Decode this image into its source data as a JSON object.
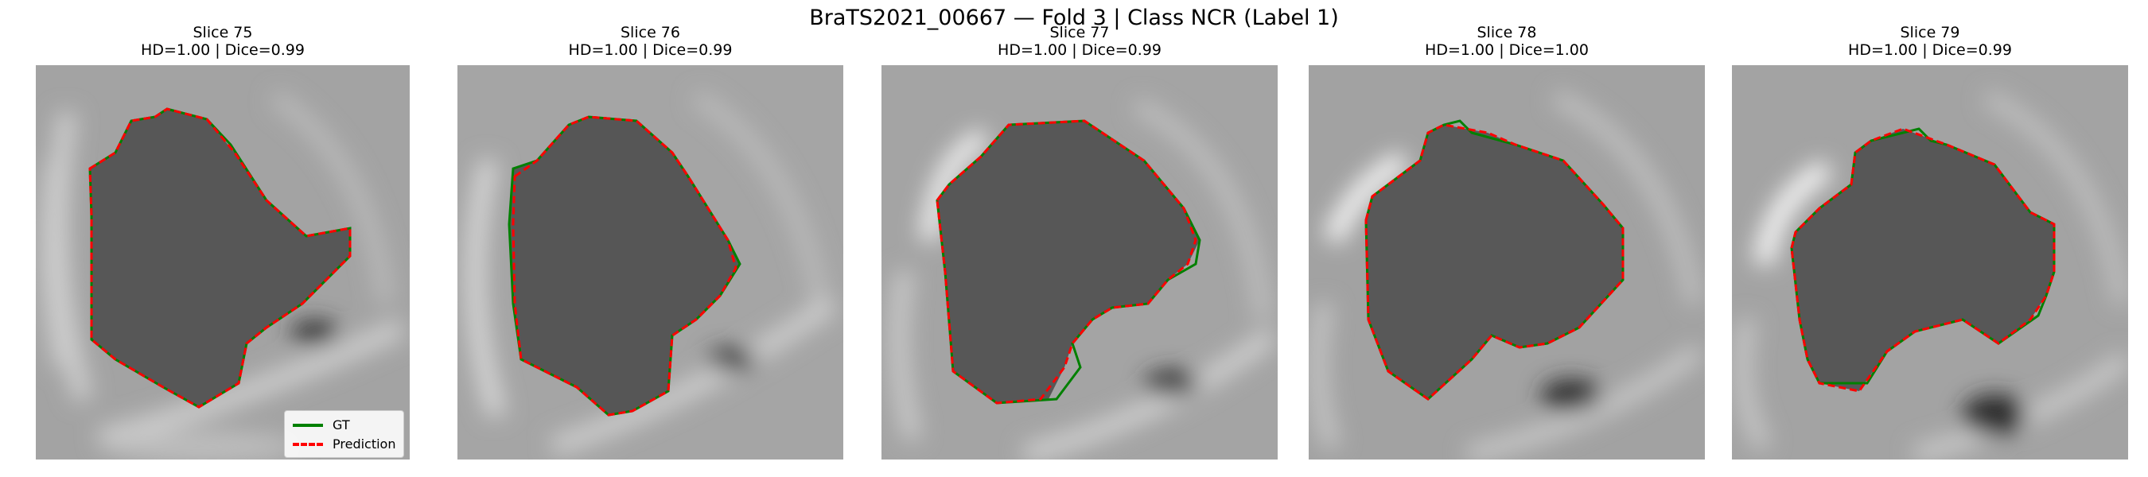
{
  "figure": {
    "title": "BraTS2021_00667 — Fold 3 | Class NCR (Label 1)"
  },
  "colors": {
    "gt": "#008000",
    "prediction": "#ff0000",
    "background_tissue": "#9a9a9a",
    "tumor_core": "#555555"
  },
  "legend": {
    "gt_label": "GT",
    "prediction_label": "Prediction"
  },
  "panels": [
    {
      "title": "Slice 75",
      "metrics": "HD=1.00 | Dice=0.99"
    },
    {
      "title": "Slice 76",
      "metrics": "HD=1.00 | Dice=0.99"
    },
    {
      "title": "Slice 77",
      "metrics": "HD=1.00 | Dice=0.99"
    },
    {
      "title": "Slice 78",
      "metrics": "HD=1.00 | Dice=1.00"
    },
    {
      "title": "Slice 79",
      "metrics": "HD=1.00 | Dice=0.99"
    }
  ]
}
